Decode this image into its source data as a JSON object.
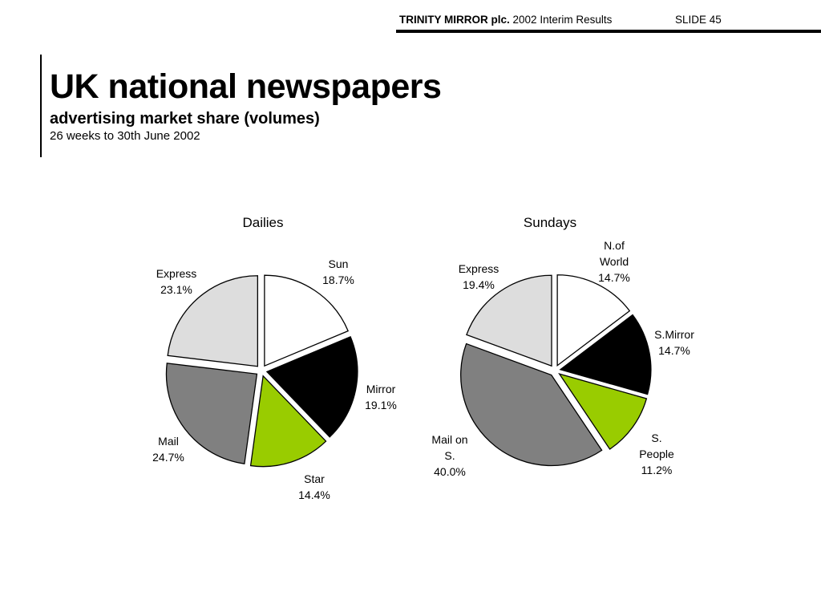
{
  "header": {
    "company": "TRINITY MIRROR plc.",
    "report": "2002 Interim Results",
    "slide": "SLIDE 45"
  },
  "title": "UK national newspapers",
  "subtitle": "advertising market share (volumes)",
  "dateline": "26 weeks to 30th June 2002",
  "chart_data": [
    {
      "type": "pie",
      "title": "Dailies",
      "start_angle_deg": 0,
      "slices": [
        {
          "label": "Sun",
          "value": 18.7,
          "value_label": "18.7%",
          "color": "#ffffff"
        },
        {
          "label": "Mirror",
          "value": 19.1,
          "value_label": "19.1%",
          "color": "#000000"
        },
        {
          "label": "Star",
          "value": 14.4,
          "value_label": "14.4%",
          "color": "#99cc00"
        },
        {
          "label": "Mail",
          "value": 24.7,
          "value_label": "24.7%",
          "color": "#808080"
        },
        {
          "label": "Express",
          "value": 23.1,
          "value_label": "23.1%",
          "color": "#dddddd"
        }
      ]
    },
    {
      "type": "pie",
      "title": "Sundays",
      "start_angle_deg": 0,
      "slices": [
        {
          "label": "N.of World",
          "value": 14.7,
          "value_label": "14.7%",
          "color": "#ffffff"
        },
        {
          "label": "S.Mirror",
          "value": 14.7,
          "value_label": "14.7%",
          "color": "#000000"
        },
        {
          "label": "S. People",
          "value": 11.2,
          "value_label": "11.2%",
          "color": "#99cc00"
        },
        {
          "label": "Mail on S.",
          "value": 40.0,
          "value_label": "40.0%",
          "color": "#808080"
        },
        {
          "label": "Express",
          "value": 19.4,
          "value_label": "19.4%",
          "color": "#dddddd"
        }
      ]
    }
  ]
}
